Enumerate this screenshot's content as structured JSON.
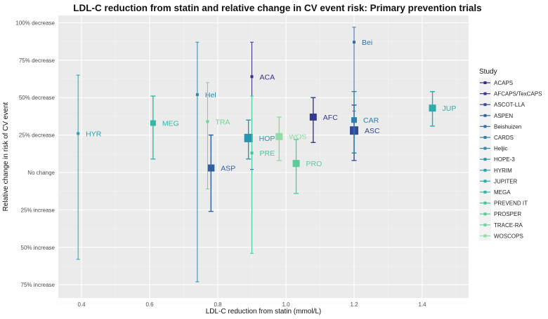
{
  "chart_data": {
    "type": "scatter",
    "title": "LDL-C reduction from statin and relative change in CV event risk: Primary prevention trials",
    "xlabel": "LDL-C reduction from statin (mmol/L)",
    "ylabel": "Relative change in risk of CV event",
    "xlim": [
      0.33,
      1.53
    ],
    "ylim": [
      -83,
      104
    ],
    "x_ticks": [
      0.4,
      0.6,
      0.8,
      1.0,
      1.2,
      1.4
    ],
    "x_tick_labels": [
      "0.4",
      "0.6",
      "0.8",
      "1.0",
      "1.2",
      "1.4"
    ],
    "y_ticks": [
      100,
      75,
      50,
      25,
      0,
      -25,
      -50,
      -75
    ],
    "y_tick_labels": [
      "100% decrease",
      "75% decrease",
      "50% decrease",
      "25% decrease",
      "No change",
      "25% increase",
      "50% increase",
      "75% increase"
    ],
    "y_units": "percent decrease in risk (negative = increase)",
    "grid": true,
    "legend": {
      "title": "Study",
      "position": "right"
    },
    "series": [
      {
        "name": "ACAPS",
        "label": "ACA",
        "x": 0.9,
        "y": 64,
        "ci": [
          2,
          87
        ],
        "weight": 1,
        "color": "#3b2c7e"
      },
      {
        "name": "AFCAPS/TexCAPS",
        "label": "AFC",
        "x": 1.08,
        "y": 37,
        "ci": [
          20,
          50
        ],
        "weight": 4,
        "color": "#37398c"
      },
      {
        "name": "ASCOT-LLA",
        "label": "ASC",
        "x": 1.2,
        "y": 28,
        "ci": [
          8,
          45
        ],
        "weight": 5,
        "color": "#344a98"
      },
      {
        "name": "ASPEN",
        "label": "ASP",
        "x": 0.78,
        "y": 3,
        "ci": [
          -26,
          25
        ],
        "weight": 4,
        "color": "#3160a2"
      },
      {
        "name": "Beishuizen",
        "label": "Bei",
        "x": 1.2,
        "y": 87,
        "ci": [
          41,
          97
        ],
        "weight": 1,
        "color": "#2f70a8"
      },
      {
        "name": "CARDS",
        "label": "CAR",
        "x": 1.2,
        "y": 35,
        "ci": [
          13,
          54
        ],
        "weight": 3,
        "color": "#2d7eab"
      },
      {
        "name": "Heljic",
        "label": "Hel",
        "x": 0.74,
        "y": 52,
        "ci": [
          -73,
          87
        ],
        "weight": 1,
        "color": "#2b8aad"
      },
      {
        "name": "HOPE-3",
        "label": "HOP",
        "x": 0.89,
        "y": 23,
        "ci": [
          9,
          35
        ],
        "weight": 5,
        "color": "#2a95ae"
      },
      {
        "name": "HYRIM",
        "label": "HYR",
        "x": 0.39,
        "y": 26,
        "ci": [
          -58,
          65
        ],
        "weight": 1,
        "color": "#29a1ae"
      },
      {
        "name": "JUPITER",
        "label": "JUP",
        "x": 1.43,
        "y": 43,
        "ci": [
          31,
          54
        ],
        "weight": 4,
        "color": "#2aadaa"
      },
      {
        "name": "MEGA",
        "label": "MEG",
        "x": 0.61,
        "y": 33,
        "ci": [
          9,
          51
        ],
        "weight": 3,
        "color": "#33b8a4"
      },
      {
        "name": "PREVEND IT",
        "label": "PRE",
        "x": 0.9,
        "y": 13,
        "ci": [
          -54,
          51
        ],
        "weight": 1,
        "color": "#45c39d"
      },
      {
        "name": "PROSPER",
        "label": "PRO",
        "x": 1.03,
        "y": 6,
        "ci": [
          -14,
          22
        ],
        "weight": 4,
        "color": "#5acc99"
      },
      {
        "name": "TRACE-RA",
        "label": "TRA",
        "x": 0.77,
        "y": 34,
        "ci": [
          -11,
          60
        ],
        "weight": 1,
        "color": "#73d49a"
      },
      {
        "name": "WOSCOPS",
        "label": "WOS",
        "x": 0.98,
        "y": 24,
        "ci": [
          8,
          37
        ],
        "weight": 4,
        "color": "#90dca5"
      }
    ]
  }
}
